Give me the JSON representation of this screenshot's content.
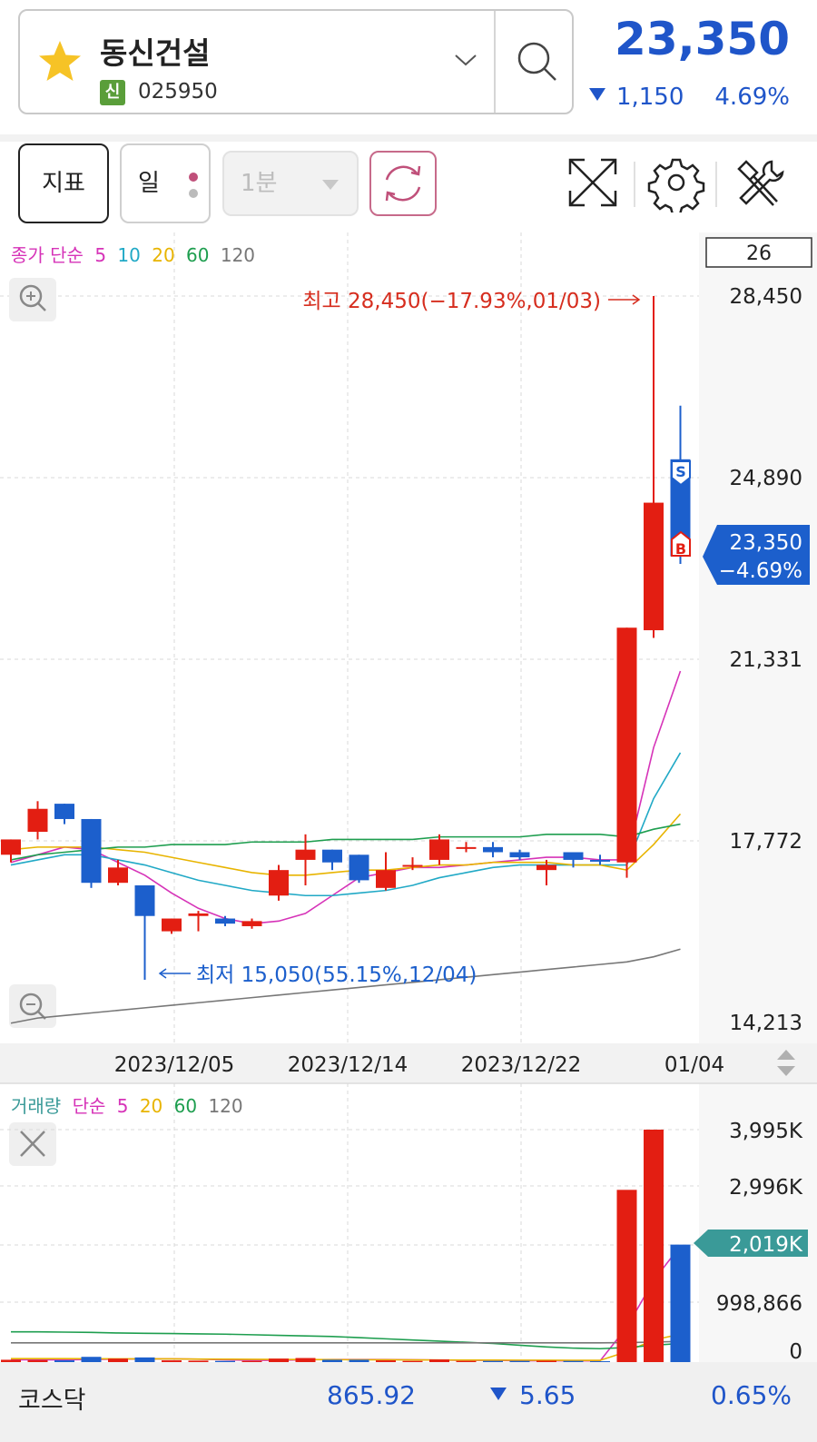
{
  "header": {
    "stock_name": "동신건설",
    "market_badge": "신",
    "stock_code": "025950",
    "current_price": "23,350",
    "change_amount": "1,150",
    "change_pct": "4.69%",
    "favorite_icon": "star-icon",
    "search_icon": "search-icon"
  },
  "toolbar": {
    "indicator_label": "지표",
    "period_label": "일",
    "minute_label": "1분",
    "refresh_icon": "refresh-icon",
    "expand_icon": "expand-icon",
    "settings_icon": "gear-icon",
    "tools_icon": "tools-icon"
  },
  "price_chart": {
    "legend": {
      "prefix": "종가 단순",
      "ma": [
        {
          "label": "5",
          "color": "#d633b8"
        },
        {
          "label": "10",
          "color": "#21a9c6"
        },
        {
          "label": "20",
          "color": "#e8b400"
        },
        {
          "label": "60",
          "color": "#1e9e4f"
        },
        {
          "label": "120",
          "color": "#777777"
        }
      ]
    },
    "badge": "26",
    "high_annotation": "최고 28,450(−17.93%,01/03)",
    "low_annotation": "최저 15,050(55.15%,12/04)",
    "y_ticks": [
      "28,450",
      "24,890",
      "21,331",
      "17,772",
      "14,213"
    ],
    "current_label_price": "23,350",
    "current_label_pct": "−4.69%",
    "x_ticks": [
      "2023/12/05",
      "2023/12/14",
      "2023/12/22",
      "01/04"
    ],
    "sell_marker": "S",
    "buy_marker": "B",
    "zoom_in_icon": "zoom-in-icon",
    "zoom_out_icon": "zoom-out-icon",
    "scroll_icon": "scroll-arrows-icon"
  },
  "volume_chart": {
    "legend": {
      "prefix_a": "거래량",
      "prefix_b": "단순",
      "ma": [
        {
          "label": "5",
          "color": "#d633b8"
        },
        {
          "label": "20",
          "color": "#e8b400"
        },
        {
          "label": "60",
          "color": "#1e9e4f"
        },
        {
          "label": "120",
          "color": "#777777"
        }
      ]
    },
    "y_ticks": [
      "3,995K",
      "2,996K",
      "998,866",
      "0"
    ],
    "current_label": "2,019K",
    "close_icon": "close-icon"
  },
  "footer": {
    "index_name": "코스닥",
    "index_value": "865.92",
    "index_change": "5.65",
    "index_pct": "0.65%"
  },
  "colors": {
    "up": "#e31e12",
    "down": "#1c5fcc",
    "accent_blue": "#1f55c9",
    "volume_label": "#3a9a98"
  },
  "chart_data": {
    "type": "candlestick",
    "y_range": [
      14213,
      28450
    ],
    "volume_range": [
      0,
      3995000
    ],
    "candles": [
      {
        "o": 17800,
        "c": 17500,
        "h": 17800,
        "l": 17350,
        "up": true
      },
      {
        "o": 18400,
        "c": 17950,
        "h": 18550,
        "l": 17800,
        "up": true
      },
      {
        "o": 18500,
        "c": 18200,
        "h": 18500,
        "l": 18100,
        "up": false
      },
      {
        "o": 18200,
        "c": 16950,
        "h": 18200,
        "l": 16850,
        "up": false
      },
      {
        "o": 17250,
        "c": 16950,
        "h": 17400,
        "l": 16900,
        "up": true
      },
      {
        "o": 16900,
        "c": 16300,
        "h": 16900,
        "l": 15050,
        "up": false
      },
      {
        "o": 16250,
        "c": 16000,
        "h": 16250,
        "l": 15950,
        "up": true
      },
      {
        "o": 16350,
        "c": 16300,
        "h": 16400,
        "l": 16000,
        "up": true
      },
      {
        "o": 16250,
        "c": 16150,
        "h": 16300,
        "l": 16100,
        "up": false
      },
      {
        "o": 16200,
        "c": 16100,
        "h": 16250,
        "l": 16050,
        "up": true
      },
      {
        "o": 17200,
        "c": 16700,
        "h": 17300,
        "l": 16600,
        "up": true
      },
      {
        "o": 17600,
        "c": 17400,
        "h": 17900,
        "l": 16900,
        "up": true
      },
      {
        "o": 17600,
        "c": 17350,
        "h": 17600,
        "l": 17200,
        "up": false
      },
      {
        "o": 17500,
        "c": 17000,
        "h": 17500,
        "l": 16950,
        "up": false
      },
      {
        "o": 17200,
        "c": 16850,
        "h": 17550,
        "l": 16800,
        "up": true
      },
      {
        "o": 17300,
        "c": 17300,
        "h": 17450,
        "l": 17200,
        "up": true
      },
      {
        "o": 17800,
        "c": 17400,
        "h": 17900,
        "l": 17300,
        "up": true
      },
      {
        "o": 17650,
        "c": 17650,
        "h": 17750,
        "l": 17550,
        "up": true
      },
      {
        "o": 17650,
        "c": 17550,
        "h": 17750,
        "l": 17450,
        "up": false
      },
      {
        "o": 17550,
        "c": 17450,
        "h": 17600,
        "l": 17400,
        "up": false
      },
      {
        "o": 17300,
        "c": 17200,
        "h": 17400,
        "l": 16900,
        "up": true
      },
      {
        "o": 17550,
        "c": 17400,
        "h": 17550,
        "l": 17250,
        "up": false
      },
      {
        "o": 17400,
        "c": 17400,
        "h": 17500,
        "l": 17300,
        "up": false
      },
      {
        "o": 21950,
        "c": 17350,
        "h": 21950,
        "l": 17050,
        "up": true
      },
      {
        "o": 24400,
        "c": 21900,
        "h": 28450,
        "l": 21750,
        "up": true
      },
      {
        "o": 25250,
        "c": 23350,
        "h": 26300,
        "l": 23200,
        "up": false
      }
    ],
    "volumes": [
      {
        "v": 40000,
        "up": true
      },
      {
        "v": 35000,
        "up": true
      },
      {
        "v": 30000,
        "up": false
      },
      {
        "v": 90000,
        "up": false
      },
      {
        "v": 60000,
        "up": true
      },
      {
        "v": 80000,
        "up": false
      },
      {
        "v": 30000,
        "up": true
      },
      {
        "v": 25000,
        "up": true
      },
      {
        "v": 20000,
        "up": false
      },
      {
        "v": 20000,
        "up": true
      },
      {
        "v": 60000,
        "up": true
      },
      {
        "v": 70000,
        "up": true
      },
      {
        "v": 40000,
        "up": false
      },
      {
        "v": 40000,
        "up": false
      },
      {
        "v": 30000,
        "up": true
      },
      {
        "v": 20000,
        "up": true
      },
      {
        "v": 45000,
        "up": true
      },
      {
        "v": 20000,
        "up": true
      },
      {
        "v": 20000,
        "up": false
      },
      {
        "v": 20000,
        "up": false
      },
      {
        "v": 25000,
        "up": true
      },
      {
        "v": 20000,
        "up": false
      },
      {
        "v": 15000,
        "up": false
      },
      {
        "v": 2960000,
        "up": true
      },
      {
        "v": 3995000,
        "up": true
      },
      {
        "v": 2019000,
        "up": false
      }
    ],
    "ma_series": {
      "ma5": [
        17350,
        17500,
        17650,
        17600,
        17350,
        17100,
        16750,
        16450,
        16250,
        16150,
        16200,
        16350,
        16700,
        17050,
        17150,
        17250,
        17250,
        17300,
        17350,
        17400,
        17450,
        17450,
        17400,
        17400,
        19600,
        21100
      ],
      "ma10": [
        17300,
        17400,
        17500,
        17500,
        17400,
        17300,
        17150,
        17000,
        16900,
        16800,
        16750,
        16700,
        16700,
        16750,
        16800,
        16900,
        17050,
        17150,
        17250,
        17300,
        17300,
        17300,
        17300,
        17300,
        18600,
        19500
      ],
      "ma20": [
        17600,
        17650,
        17650,
        17650,
        17600,
        17550,
        17450,
        17350,
        17250,
        17150,
        17100,
        17100,
        17150,
        17200,
        17200,
        17250,
        17300,
        17300,
        17350,
        17350,
        17350,
        17300,
        17300,
        17200,
        17700,
        18300
      ],
      "ma60": [
        17400,
        17500,
        17550,
        17600,
        17650,
        17650,
        17700,
        17700,
        17700,
        17750,
        17750,
        17750,
        17800,
        17800,
        17800,
        17800,
        17850,
        17850,
        17850,
        17850,
        17900,
        17900,
        17900,
        17850,
        18000,
        18100
      ],
      "ma120": [
        14200,
        14300,
        14350,
        14400,
        14450,
        14500,
        14550,
        14600,
        14650,
        14700,
        14750,
        14800,
        14850,
        14900,
        14950,
        15000,
        15050,
        15100,
        15150,
        15200,
        15250,
        15300,
        15350,
        15400,
        15500,
        15650
      ]
    },
    "vol_ma_series": {
      "ma5": [
        40000,
        40000,
        38000,
        45000,
        50000,
        55000,
        55000,
        50000,
        40000,
        30000,
        30000,
        40000,
        45000,
        45000,
        45000,
        40000,
        35000,
        30000,
        30000,
        25000,
        22000,
        22000,
        20000,
        600000,
        1400000,
        2000000
      ],
      "ma20": [
        60000,
        60000,
        60000,
        58000,
        56000,
        55000,
        55000,
        52000,
        50000,
        48000,
        46000,
        44000,
        42000,
        40000,
        40000,
        38000,
        36000,
        35000,
        34000,
        33000,
        32000,
        31000,
        30000,
        180000,
        380000,
        480000
      ],
      "ma60": [
        520000,
        520000,
        515000,
        510000,
        500000,
        495000,
        490000,
        485000,
        480000,
        470000,
        460000,
        450000,
        440000,
        420000,
        400000,
        380000,
        360000,
        340000,
        320000,
        290000,
        260000,
        240000,
        230000,
        250000,
        290000,
        320000
      ],
      "ma120": [
        330000,
        330000,
        330000,
        330000,
        330000,
        330000,
        330000,
        330000,
        330000,
        330000,
        330000,
        330000,
        330000,
        330000,
        330000,
        330000,
        330000,
        330000,
        330000,
        330000,
        330000,
        330000,
        330000,
        335000,
        345000,
        355000
      ]
    }
  }
}
